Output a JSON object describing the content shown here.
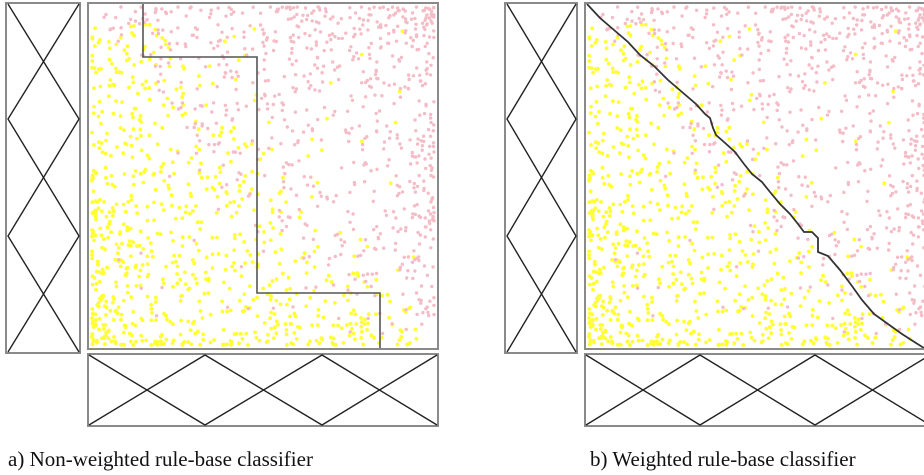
{
  "panels": [
    {
      "id": "a",
      "caption": "a) Non-weighted rule-base classifier",
      "boundary": "staircase"
    },
    {
      "id": "b",
      "caption": "b) Weighted rule-base classifier",
      "boundary": "diagonal"
    }
  ],
  "colors": {
    "class_1_points": "#ffff33",
    "class_2_points": "#f4bcc6",
    "boundary": "#555555",
    "membership_lines": "#222222",
    "frame": "#8a8a8a"
  }
}
